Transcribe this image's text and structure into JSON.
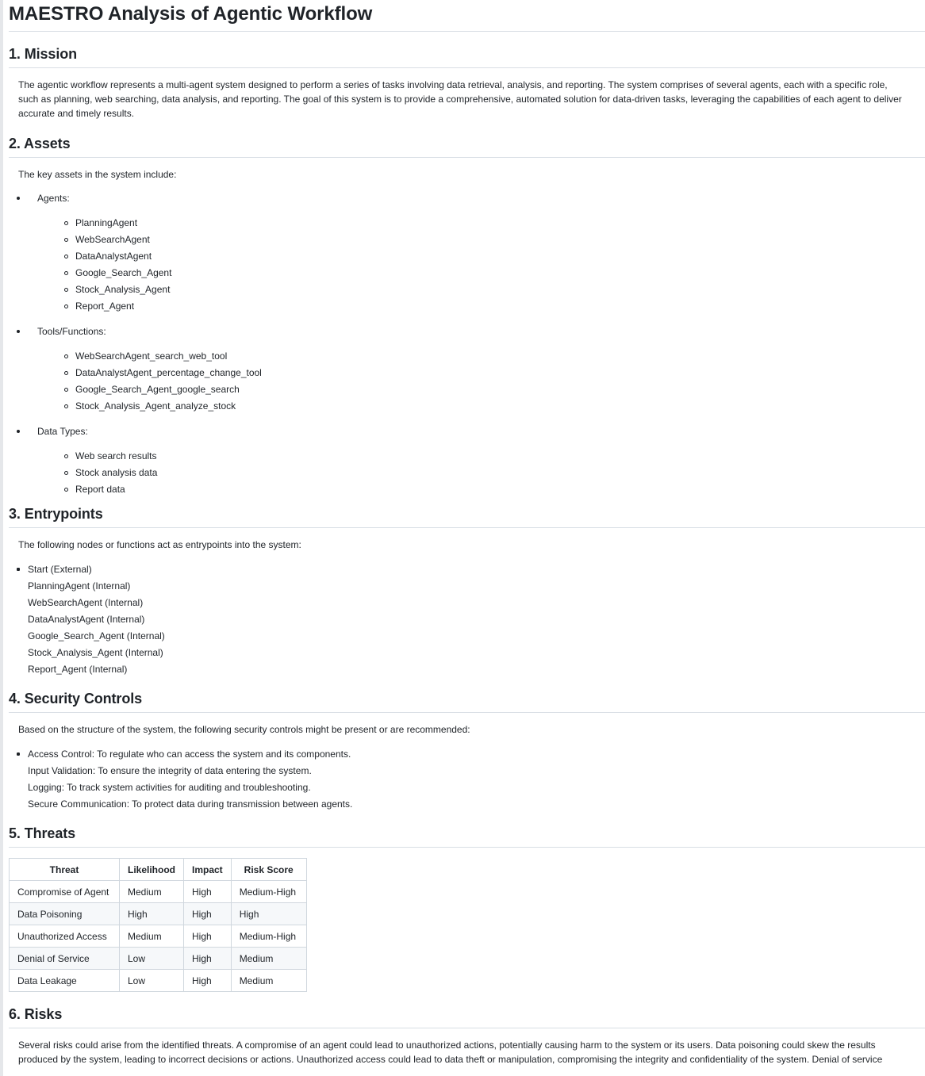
{
  "title": "MAESTRO Analysis of Agentic Workflow",
  "mission": {
    "heading": "1. Mission",
    "text": "The agentic workflow represents a multi-agent system designed to perform a series of tasks involving data retrieval, analysis, and reporting. The system comprises of several agents, each with a specific role, such as planning, web searching, data analysis, and reporting. The goal of this system is to provide a comprehensive, automated solution for data-driven tasks, leveraging the capabilities of each agent to deliver accurate and timely results."
  },
  "assets": {
    "heading": "2. Assets",
    "intro": "The key assets in the system include:",
    "groups": [
      {
        "label": "Agents:",
        "items": [
          "PlanningAgent",
          "WebSearchAgent",
          "DataAnalystAgent",
          "Google_Search_Agent",
          "Stock_Analysis_Agent",
          "Report_Agent"
        ]
      },
      {
        "label": "Tools/Functions:",
        "items": [
          "WebSearchAgent_search_web_tool",
          "DataAnalystAgent_percentage_change_tool",
          "Google_Search_Agent_google_search",
          "Stock_Analysis_Agent_analyze_stock"
        ]
      },
      {
        "label": "Data Types:",
        "items": [
          "Web search results",
          "Stock analysis data",
          "Report data"
        ]
      }
    ]
  },
  "entrypoints": {
    "heading": "3. Entrypoints",
    "intro": "The following nodes or functions act as entrypoints into the system:",
    "items": [
      "Start (External)",
      "PlanningAgent (Internal)",
      "WebSearchAgent (Internal)",
      "DataAnalystAgent (Internal)",
      "Google_Search_Agent (Internal)",
      "Stock_Analysis_Agent (Internal)",
      "Report_Agent (Internal)"
    ]
  },
  "controls": {
    "heading": "4. Security Controls",
    "intro": "Based on the structure of the system, the following security controls might be present or are recommended:",
    "items": [
      "Access Control: To regulate who can access the system and its components.",
      "Input Validation: To ensure the integrity of data entering the system.",
      "Logging: To track system activities for auditing and troubleshooting.",
      "Secure Communication: To protect data during transmission between agents."
    ]
  },
  "threats": {
    "heading": "5. Threats",
    "columns": [
      "Threat",
      "Likelihood",
      "Impact",
      "Risk Score"
    ],
    "rows": [
      [
        "Compromise of Agent",
        "Medium",
        "High",
        "Medium-High"
      ],
      [
        "Data Poisoning",
        "High",
        "High",
        "High"
      ],
      [
        "Unauthorized Access",
        "Medium",
        "High",
        "Medium-High"
      ],
      [
        "Denial of Service",
        "Low",
        "High",
        "Medium"
      ],
      [
        "Data Leakage",
        "Low",
        "High",
        "Medium"
      ]
    ]
  },
  "risks": {
    "heading": "6. Risks",
    "text": "Several risks could arise from the identified threats. A compromise of an agent could lead to unauthorized actions, potentially causing harm to the system or its users. Data poisoning could skew the results produced by the system, leading to incorrect decisions or actions. Unauthorized access could lead to data theft or manipulation, compromising the integrity and confidentiality of the system. Denial of service"
  }
}
